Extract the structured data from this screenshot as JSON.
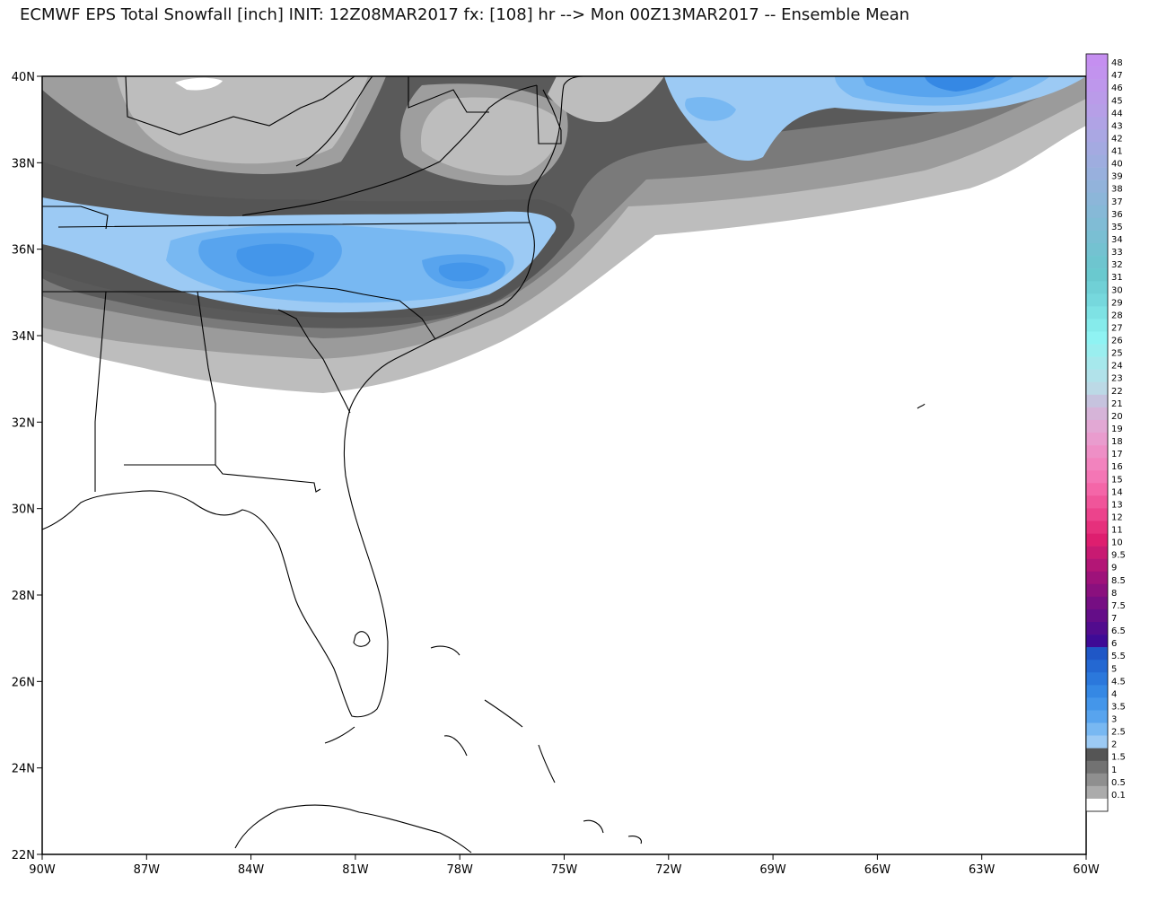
{
  "title": "ECMWF EPS Total Snowfall [inch] INIT: 12Z08MAR2017 fx: [108] hr --> Mon 00Z13MAR2017 -- Ensemble Mean",
  "map": {
    "lat_min": 22,
    "lat_max": 40,
    "lon_min": -90,
    "lon_max": -60,
    "lat_labels": [
      "40N",
      "38N",
      "36N",
      "34N",
      "32N",
      "30N",
      "28N",
      "26N",
      "24N",
      "22N"
    ],
    "lon_labels": [
      "90W",
      "87W",
      "84W",
      "81W",
      "78W",
      "75W",
      "72W",
      "69W",
      "66W",
      "63W",
      "60W"
    ]
  },
  "colorbar": {
    "levels": [
      {
        "label": "48",
        "color": "#c58ff0"
      },
      {
        "label": "47",
        "color": "#c293ee"
      },
      {
        "label": "46",
        "color": "#be97ec"
      },
      {
        "label": "45",
        "color": "#ba9be9"
      },
      {
        "label": "44",
        "color": "#b69fe7"
      },
      {
        "label": "43",
        "color": "#b0a3e5"
      },
      {
        "label": "42",
        "color": "#aaa7e3"
      },
      {
        "label": "41",
        "color": "#a4aae1"
      },
      {
        "label": "40",
        "color": "#9eaddf"
      },
      {
        "label": "39",
        "color": "#98b0dd"
      },
      {
        "label": "38",
        "color": "#92b3db"
      },
      {
        "label": "37",
        "color": "#8cb6d9"
      },
      {
        "label": "36",
        "color": "#86b9d7"
      },
      {
        "label": "35",
        "color": "#80bcd5"
      },
      {
        "label": "34",
        "color": "#7abfd3"
      },
      {
        "label": "33",
        "color": "#74c2d1"
      },
      {
        "label": "32",
        "color": "#6ec5cf"
      },
      {
        "label": "31",
        "color": "#6ac9cf"
      },
      {
        "label": "30",
        "color": "#70d0d6"
      },
      {
        "label": "29",
        "color": "#76d8dd"
      },
      {
        "label": "28",
        "color": "#7ee2e4"
      },
      {
        "label": "27",
        "color": "#86ebeb"
      },
      {
        "label": "26",
        "color": "#8ff3f3"
      },
      {
        "label": "25",
        "color": "#9aeeef"
      },
      {
        "label": "24",
        "color": "#a6e8ec"
      },
      {
        "label": "23",
        "color": "#b1e2ea"
      },
      {
        "label": "22",
        "color": "#bcd9e6"
      },
      {
        "label": "21",
        "color": "#c6c3de"
      },
      {
        "label": "20",
        "color": "#d6b4d8"
      },
      {
        "label": "19",
        "color": "#e2a8d4"
      },
      {
        "label": "18",
        "color": "#e99cce"
      },
      {
        "label": "17",
        "color": "#ee8fc6"
      },
      {
        "label": "16",
        "color": "#f283be"
      },
      {
        "label": "15",
        "color": "#f476b5"
      },
      {
        "label": "14",
        "color": "#f466a8"
      },
      {
        "label": "13",
        "color": "#f0559a"
      },
      {
        "label": "12",
        "color": "#ec438c"
      },
      {
        "label": "11",
        "color": "#e6307c"
      },
      {
        "label": "10",
        "color": "#de1e6f"
      },
      {
        "label": "9.5",
        "color": "#c81a72"
      },
      {
        "label": "9",
        "color": "#b31676"
      },
      {
        "label": "8.5",
        "color": "#9e127a"
      },
      {
        "label": "8",
        "color": "#8a107e"
      },
      {
        "label": "7.5",
        "color": "#760e83"
      },
      {
        "label": "7",
        "color": "#640d88"
      },
      {
        "label": "6.5",
        "color": "#520c8e"
      },
      {
        "label": "6",
        "color": "#3e0b96"
      },
      {
        "label": "5.5",
        "color": "#1f57c6"
      },
      {
        "label": "5",
        "color": "#2468d2"
      },
      {
        "label": "4.5",
        "color": "#2b78dc"
      },
      {
        "label": "4",
        "color": "#3588e4"
      },
      {
        "label": "3.5",
        "color": "#4496ea"
      },
      {
        "label": "3",
        "color": "#58a4ee"
      },
      {
        "label": "2.5",
        "color": "#78b8f2"
      },
      {
        "label": "2",
        "color": "#9ccaf4"
      },
      {
        "label": "1.5",
        "color": "#555555"
      },
      {
        "label": "1",
        "color": "#727272"
      },
      {
        "label": "0.5",
        "color": "#8f8f8f"
      },
      {
        "label": "0.1",
        "color": "#ababab"
      },
      {
        "label": "",
        "color": "#ffffff"
      }
    ]
  }
}
